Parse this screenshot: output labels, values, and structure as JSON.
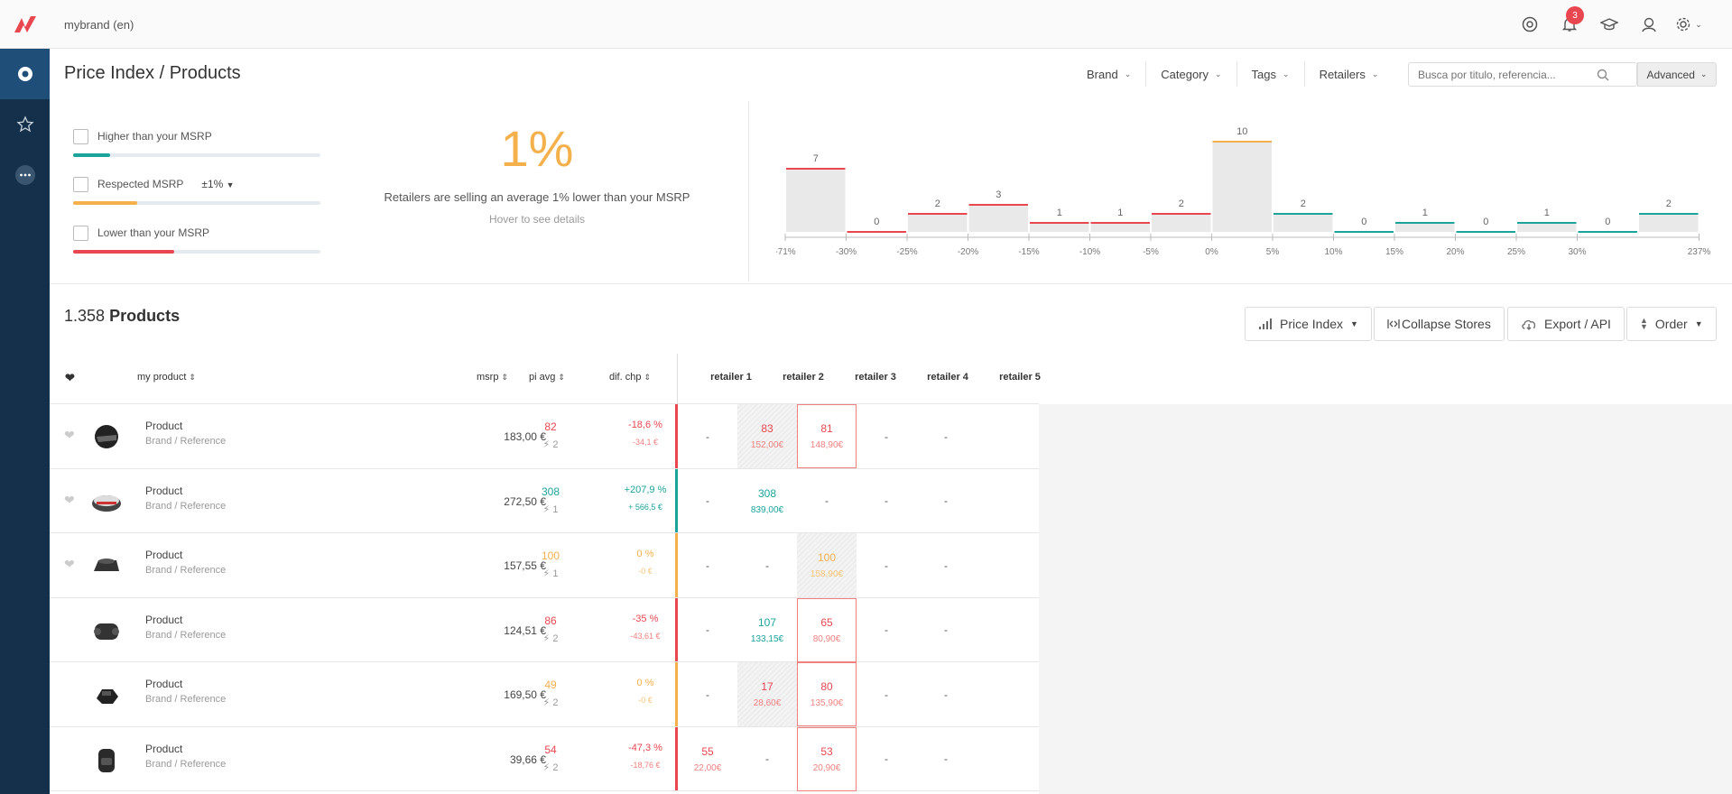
{
  "app": {
    "account": "mybrand (en)",
    "notifications": "3"
  },
  "header": {
    "title": "Price Index / Products",
    "filters": [
      "Brand",
      "Category",
      "Tags",
      "Retailers"
    ],
    "search_placeholder": "Busca por titulo, referencia...",
    "advanced": "Advanced"
  },
  "msrp_filter": {
    "higher": {
      "label": "Higher than your MSRP",
      "fill_fraction": 0.15,
      "color": "#1ba39c"
    },
    "respected": {
      "label": "Respected MSRP",
      "tolerance": "±1%",
      "fill_fraction": 0.26,
      "color": "#f4b04b"
    },
    "lower": {
      "label": "Lower than your MSRP",
      "fill_fraction": 0.41,
      "color": "#e8474f"
    }
  },
  "summary": {
    "percent": "1%",
    "description": "Retailers are selling an average 1% lower than your MSRP",
    "hint": "Hover to see details"
  },
  "chart_data": {
    "type": "bar",
    "values": [
      7,
      0,
      2,
      3,
      1,
      1,
      2,
      10,
      2,
      0,
      1,
      0,
      1,
      0,
      2
    ],
    "bar_colors": [
      "red",
      "red",
      "red",
      "red",
      "red",
      "red",
      "red",
      "orange",
      "green",
      "green",
      "green",
      "green",
      "green",
      "green",
      "green"
    ],
    "tick_labels": [
      "-71%",
      "-30%",
      "-25%",
      "-20%",
      "-15%",
      "-10%",
      "-5%",
      "0%",
      "5%",
      "10%",
      "15%",
      "20%",
      "25%",
      "30%",
      "237%"
    ],
    "colors": {
      "red": "#e8474f",
      "orange": "#f4b04b",
      "green": "#1ba39c"
    }
  },
  "products": {
    "count_number": "1.358",
    "count_label": "Products",
    "toolbar": {
      "price_index": "Price Index",
      "collapse": "Collapse Stores",
      "export": "Export / API",
      "order": "Order"
    },
    "columns": {
      "product": "my product",
      "msrp": "msrp",
      "pi_avg": "pi avg",
      "dif": "dif. chp",
      "retailers": [
        "retailer 1",
        "retailer 2",
        "retailer 3",
        "retailer 4",
        "retailer 5"
      ]
    },
    "rows": [
      {
        "name": "Product",
        "sub": "Brand / Reference",
        "msrp": "183,00 €",
        "pi": "82",
        "count": "2",
        "dif": "-18,6 %",
        "dif2": "-34,1 €",
        "status": "red",
        "fav": true,
        "cells": [
          {
            "t": "dash",
            "v": "-"
          },
          {
            "t": "hatch",
            "v": "83",
            "p": "152,00€",
            "c": "red"
          },
          {
            "t": "boxed",
            "v": "81",
            "p": "148,90€",
            "c": "red"
          },
          {
            "t": "dash",
            "v": "-"
          },
          {
            "t": "dash",
            "v": "-"
          }
        ]
      },
      {
        "name": "Product",
        "sub": "Brand / Reference",
        "msrp": "272,50 €",
        "pi": "308",
        "count": "1",
        "dif": "+207,9 %",
        "dif2": "+ 566,5 €",
        "status": "green",
        "fav": true,
        "cells": [
          {
            "t": "dash",
            "v": "-"
          },
          {
            "t": "plain",
            "v": "308",
            "p": "839,00€",
            "c": "green"
          },
          {
            "t": "dash",
            "v": "-"
          },
          {
            "t": "dash",
            "v": "-"
          },
          {
            "t": "dash",
            "v": "-"
          }
        ]
      },
      {
        "name": "Product",
        "sub": "Brand / Reference",
        "msrp": "157,55 €",
        "pi": "100",
        "count": "1",
        "dif": "0 %",
        "dif2": "-0 €",
        "status": "orange",
        "fav": true,
        "cells": [
          {
            "t": "dash",
            "v": "-"
          },
          {
            "t": "dash",
            "v": "-"
          },
          {
            "t": "hatch",
            "v": "100",
            "p": "158,90€",
            "c": "orange"
          },
          {
            "t": "dash",
            "v": "-"
          },
          {
            "t": "dash",
            "v": "-"
          }
        ]
      },
      {
        "name": "Product",
        "sub": "Brand / Reference",
        "msrp": "124,51 €",
        "pi": "86",
        "count": "2",
        "dif": "-35 %",
        "dif2": "-43,61 €",
        "status": "red",
        "fav": false,
        "cells": [
          {
            "t": "dash",
            "v": "-"
          },
          {
            "t": "plain",
            "v": "107",
            "p": "133,15€",
            "c": "green"
          },
          {
            "t": "boxed",
            "v": "65",
            "p": "80,90€",
            "c": "red"
          },
          {
            "t": "dash",
            "v": "-"
          },
          {
            "t": "dash",
            "v": "-"
          }
        ]
      },
      {
        "name": "Product",
        "sub": "Brand / Reference",
        "msrp": "169,50 €",
        "pi": "49",
        "count": "2",
        "dif": "0 %",
        "dif2": "-0 €",
        "status": "orange",
        "fav": false,
        "cells": [
          {
            "t": "dash",
            "v": "-"
          },
          {
            "t": "hatch",
            "v": "17",
            "p": "28,60€",
            "c": "red"
          },
          {
            "t": "boxed",
            "v": "80",
            "p": "135,90€",
            "c": "red"
          },
          {
            "t": "dash",
            "v": "-"
          },
          {
            "t": "dash",
            "v": "-"
          }
        ]
      },
      {
        "name": "Product",
        "sub": "Brand / Reference",
        "msrp": "39,66 €",
        "pi": "54",
        "count": "2",
        "dif": "-47,3 %",
        "dif2": "-18,76 €",
        "status": "red",
        "fav": false,
        "cells": [
          {
            "t": "plain",
            "v": "55",
            "p": "22,00€",
            "c": "red"
          },
          {
            "t": "dash",
            "v": "-"
          },
          {
            "t": "boxed",
            "v": "53",
            "p": "20,90€",
            "c": "red"
          },
          {
            "t": "dash",
            "v": "-"
          },
          {
            "t": "dash",
            "v": "-"
          }
        ]
      }
    ]
  }
}
